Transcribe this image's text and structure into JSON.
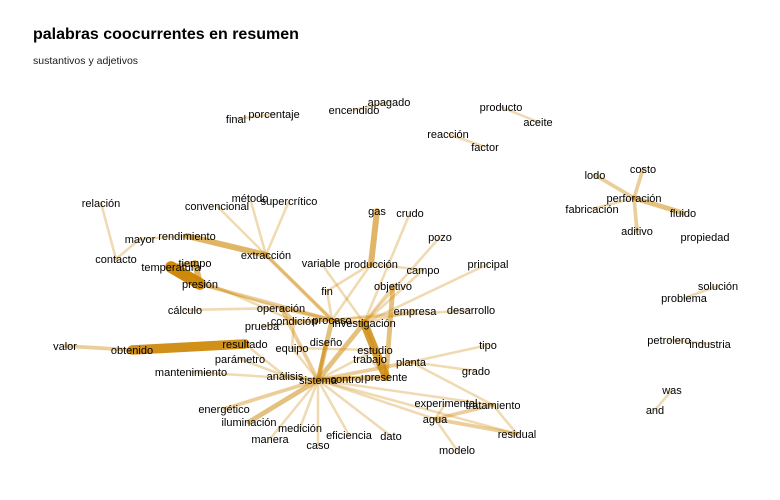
{
  "title": "palabras coocurrentes en resumen",
  "subtitle": "sustantivos y adjetivos",
  "edge_color": "#cc8400",
  "chart_data": {
    "type": "network",
    "nodes": [
      "porcentaje",
      "final",
      "encendido",
      "apagado",
      "producto",
      "aceite",
      "reacción",
      "factor",
      "costo",
      "lodo",
      "perforación",
      "fabricación",
      "fluido",
      "aditivo",
      "propiedad",
      "relación",
      "método",
      "supercrítico",
      "convencional",
      "rendimiento",
      "mayor",
      "extracción",
      "gas",
      "crudo",
      "pozo",
      "contacto",
      "tiempo",
      "temperatura",
      "presión",
      "variable",
      "producción",
      "campo",
      "principal",
      "objetivo",
      "fin",
      "cálculo",
      "operación",
      "empresa",
      "desarrollo",
      "condición",
      "proceso",
      "investigación",
      "prueba",
      "diseño",
      "equipo",
      "resultado",
      "valor",
      "obtenido",
      "estudio",
      "trabajo",
      "planta",
      "tipo",
      "parámetro",
      "presente",
      "mantenimiento",
      "análisis",
      "sistema",
      "control",
      "grado",
      "experimental",
      "tratamiento",
      "energético",
      "agua",
      "iluminación",
      "medición",
      "residual",
      "manera",
      "eficiencia",
      "caso",
      "dato",
      "modelo",
      "solución",
      "problema",
      "petrolero",
      "industria",
      "was",
      "and"
    ],
    "edges": [
      [
        "producto",
        "aceite",
        1
      ],
      [
        "reacción",
        "factor",
        1
      ],
      [
        "porcentaje",
        "final",
        1
      ],
      [
        "encendido",
        "apagado",
        1
      ],
      [
        "costo",
        "perforación",
        2
      ],
      [
        "lodo",
        "perforación",
        2
      ],
      [
        "perforación",
        "fluido",
        3
      ],
      [
        "perforación",
        "fabricación",
        1
      ],
      [
        "perforación",
        "aditivo",
        2
      ],
      [
        "solución",
        "problema",
        1
      ],
      [
        "petrolero",
        "industria",
        1
      ],
      [
        "was",
        "and",
        1
      ],
      [
        "temperatura",
        "presión",
        9
      ],
      [
        "tiempo",
        "presión",
        4
      ],
      [
        "tiempo",
        "temperatura",
        3
      ],
      [
        "resultado",
        "obtenido",
        7
      ],
      [
        "valor",
        "obtenido",
        2
      ],
      [
        "rendimiento",
        "extracción",
        4
      ],
      [
        "mayor",
        "rendimiento",
        1
      ],
      [
        "sistema",
        "control",
        3
      ],
      [
        "sistema",
        "presente",
        3
      ],
      [
        "investigación",
        "presente",
        6
      ],
      [
        "objetivo",
        "presente",
        3
      ],
      [
        "gas",
        "producción",
        4
      ],
      [
        "sistema",
        "investigación",
        3
      ],
      [
        "sistema",
        "proceso",
        3
      ],
      [
        "sistema",
        "operación",
        2
      ],
      [
        "sistema",
        "planta",
        2
      ],
      [
        "sistema",
        "análisis",
        2
      ],
      [
        "sistema",
        "iluminación",
        3
      ],
      [
        "sistema",
        "energético",
        2
      ],
      [
        "sistema",
        "eficiencia",
        1
      ],
      [
        "sistema",
        "caso",
        1
      ],
      [
        "sistema",
        "medición",
        1
      ],
      [
        "sistema",
        "manera",
        1
      ],
      [
        "sistema",
        "dato",
        1
      ],
      [
        "sistema",
        "equipo",
        1
      ],
      [
        "sistema",
        "diseño",
        2
      ],
      [
        "sistema",
        "agua",
        1
      ],
      [
        "sistema",
        "tratamiento",
        1
      ],
      [
        "sistema",
        "residual",
        1
      ],
      [
        "sistema",
        "estudio",
        1
      ],
      [
        "tratamiento",
        "agua",
        2
      ],
      [
        "tratamiento",
        "residual",
        1
      ],
      [
        "agua",
        "residual",
        2
      ],
      [
        "experimental",
        "agua",
        1
      ],
      [
        "agua",
        "modelo",
        1
      ],
      [
        "planta",
        "tratamiento",
        1
      ],
      [
        "planta",
        "grado",
        1
      ],
      [
        "planta",
        "tipo",
        1
      ],
      [
        "proceso",
        "investigación",
        2
      ],
      [
        "proceso",
        "operación",
        2
      ],
      [
        "proceso",
        "condición",
        2
      ],
      [
        "proceso",
        "extracción",
        2
      ],
      [
        "proceso",
        "presión",
        2
      ],
      [
        "proceso",
        "producción",
        1
      ],
      [
        "proceso",
        "fin",
        1
      ],
      [
        "proceso",
        "desarrollo",
        1
      ],
      [
        "proceso",
        "empresa",
        1
      ],
      [
        "proceso",
        "prueba",
        1
      ],
      [
        "operación",
        "condición",
        2
      ],
      [
        "operación",
        "presión",
        1
      ],
      [
        "operación",
        "cálculo",
        1
      ],
      [
        "condición",
        "equipo",
        1
      ],
      [
        "condición",
        "temperatura",
        1
      ],
      [
        "investigación",
        "estudio",
        1
      ],
      [
        "investigación",
        "empresa",
        1
      ],
      [
        "investigación",
        "crudo",
        1
      ],
      [
        "investigación",
        "pozo",
        1
      ],
      [
        "investigación",
        "objetivo",
        1
      ],
      [
        "investigación",
        "principal",
        1
      ],
      [
        "investigación",
        "campo",
        1
      ],
      [
        "investigación",
        "variable",
        1
      ],
      [
        "producción",
        "campo",
        1
      ],
      [
        "producción",
        "fin",
        1
      ],
      [
        "extracción",
        "método",
        1
      ],
      [
        "extracción",
        "supercrítico",
        1
      ],
      [
        "extracción",
        "convencional",
        1
      ],
      [
        "extracción",
        "proceso",
        1
      ],
      [
        "mayor",
        "contacto",
        1
      ],
      [
        "relación",
        "contacto",
        1
      ],
      [
        "análisis",
        "resultado",
        1
      ],
      [
        "análisis",
        "parámetro",
        1
      ],
      [
        "mantenimiento",
        "sistema",
        1
      ],
      [
        "equipo",
        "estudio",
        1
      ],
      [
        "trabajo",
        "presente",
        1
      ],
      [
        "diseño",
        "sistema",
        1
      ]
    ]
  }
}
